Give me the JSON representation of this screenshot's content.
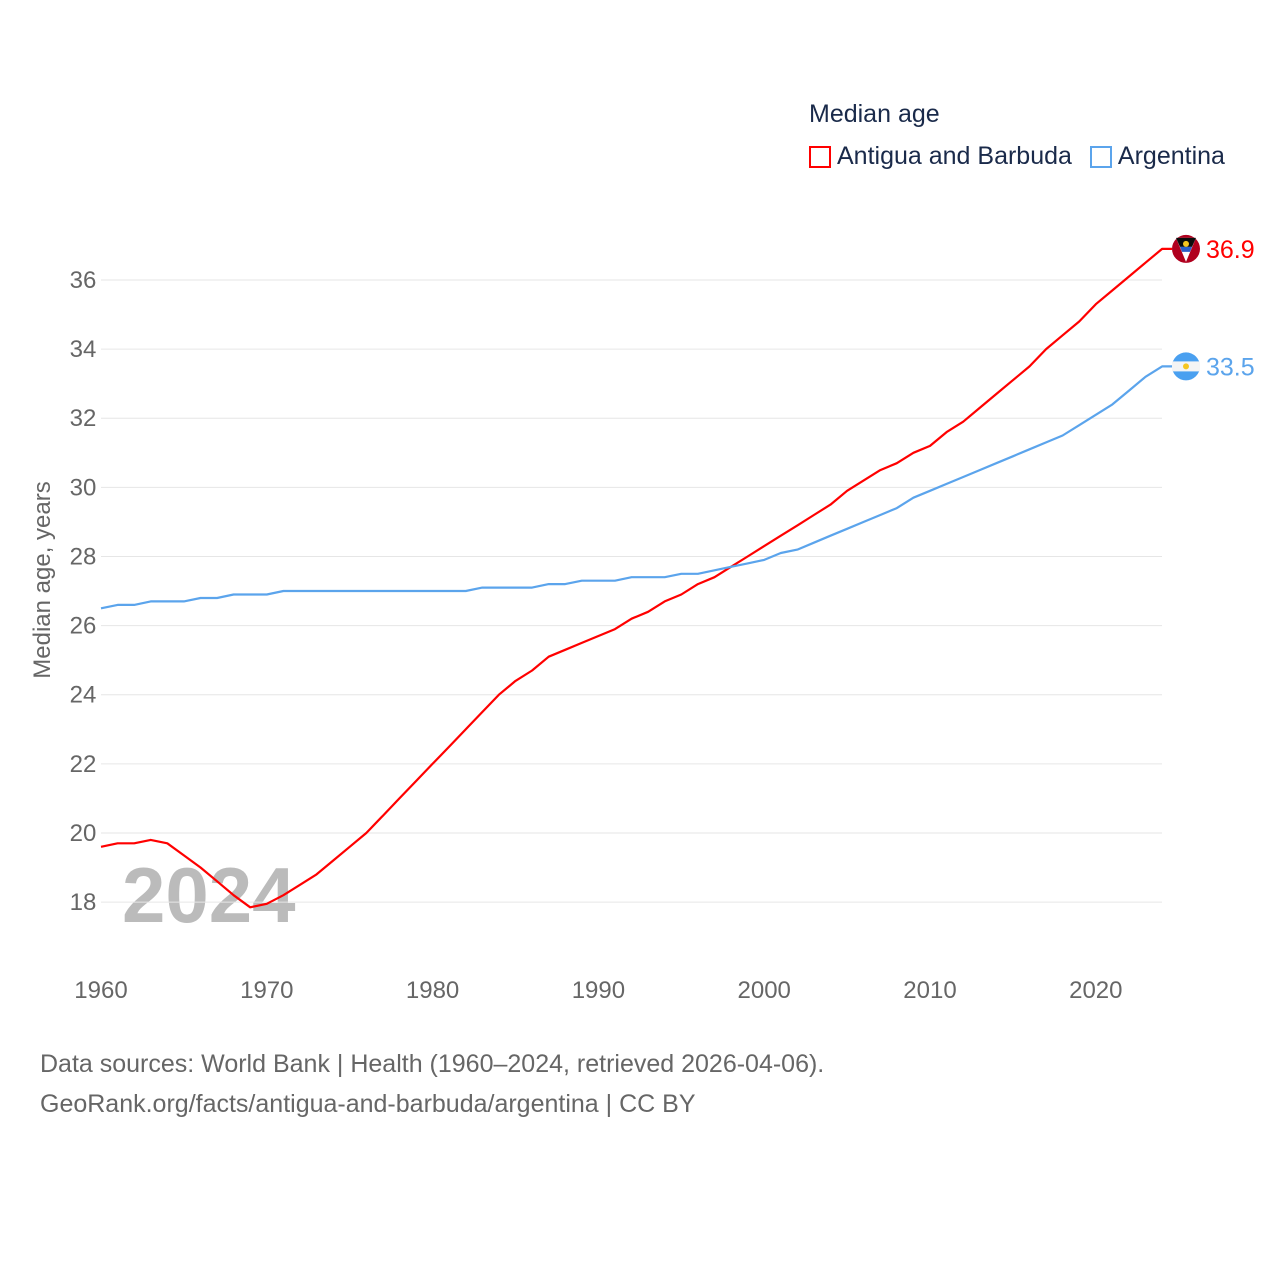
{
  "chart_data": {
    "type": "line",
    "title": "Median age",
    "xlabel": "",
    "ylabel": "Median age, years",
    "xlim": [
      1960,
      2024
    ],
    "ylim": [
      16.5,
      37
    ],
    "x_ticks": [
      "1960",
      "1970",
      "1980",
      "1990",
      "2000",
      "2010",
      "2020"
    ],
    "y_ticks": [
      "18",
      "20",
      "22",
      "24",
      "26",
      "28",
      "30",
      "32",
      "34",
      "36"
    ],
    "grid": true,
    "legend_position": "top-right",
    "watermark_year": "2024",
    "x": [
      1960,
      1961,
      1962,
      1963,
      1964,
      1965,
      1966,
      1967,
      1968,
      1969,
      1970,
      1971,
      1972,
      1973,
      1974,
      1975,
      1976,
      1977,
      1978,
      1979,
      1980,
      1981,
      1982,
      1983,
      1984,
      1985,
      1986,
      1987,
      1988,
      1989,
      1990,
      1991,
      1992,
      1993,
      1994,
      1995,
      1996,
      1997,
      1998,
      1999,
      2000,
      2001,
      2002,
      2003,
      2004,
      2005,
      2006,
      2007,
      2008,
      2009,
      2010,
      2011,
      2012,
      2013,
      2014,
      2015,
      2016,
      2017,
      2018,
      2019,
      2020,
      2021,
      2022,
      2023,
      2024
    ],
    "series": [
      {
        "name": "Antigua and Barbuda",
        "color": "#ff0000",
        "end_label": "36.9",
        "values": [
          19.6,
          19.7,
          19.7,
          19.8,
          19.7,
          19.35,
          19.0,
          18.6,
          18.2,
          17.85,
          17.95,
          18.2,
          18.5,
          18.8,
          19.2,
          19.6,
          20.0,
          20.5,
          21.0,
          21.5,
          22.0,
          22.5,
          23.0,
          23.5,
          24.0,
          24.4,
          24.7,
          25.1,
          25.3,
          25.5,
          25.7,
          25.9,
          26.2,
          26.4,
          26.7,
          26.9,
          27.2,
          27.4,
          27.7,
          28.0,
          28.3,
          28.6,
          28.9,
          29.2,
          29.5,
          29.9,
          30.2,
          30.5,
          30.7,
          31.0,
          31.2,
          31.6,
          31.9,
          32.3,
          32.7,
          33.1,
          33.5,
          34.0,
          34.4,
          34.8,
          35.3,
          35.7,
          36.1,
          36.5,
          36.9
        ]
      },
      {
        "name": "Argentina",
        "color": "#5ba4ec",
        "end_label": "33.5",
        "values": [
          26.5,
          26.6,
          26.6,
          26.7,
          26.7,
          26.7,
          26.8,
          26.8,
          26.9,
          26.9,
          26.9,
          27.0,
          27.0,
          27.0,
          27.0,
          27.0,
          27.0,
          27.0,
          27.0,
          27.0,
          27.0,
          27.0,
          27.0,
          27.1,
          27.1,
          27.1,
          27.1,
          27.2,
          27.2,
          27.3,
          27.3,
          27.3,
          27.4,
          27.4,
          27.4,
          27.5,
          27.5,
          27.6,
          27.7,
          27.8,
          27.9,
          28.1,
          28.2,
          28.4,
          28.6,
          28.8,
          29.0,
          29.2,
          29.4,
          29.7,
          29.9,
          30.1,
          30.3,
          30.5,
          30.7,
          30.9,
          31.1,
          31.3,
          31.5,
          31.8,
          32.1,
          32.4,
          32.8,
          33.2,
          33.5
        ]
      }
    ]
  },
  "footer": {
    "source_line": "Data sources: World Bank | Health (1960–2024, retrieved 2026-04-06).",
    "url_line": "GeoRank.org/facts/antigua-and-barbuda/argentina | CC BY"
  }
}
